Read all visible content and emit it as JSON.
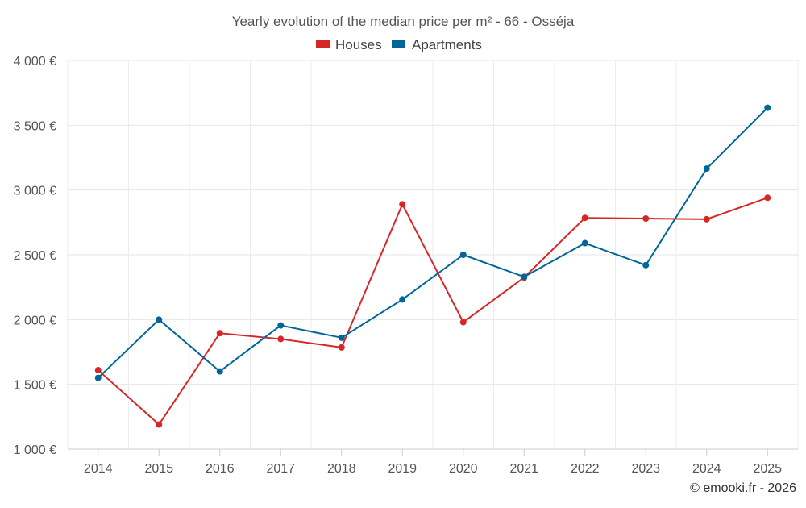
{
  "chart_data": {
    "type": "line",
    "title": "Yearly evolution of the median price per m² - 66 - Osséja",
    "categories": [
      "2014",
      "2015",
      "2016",
      "2017",
      "2018",
      "2019",
      "2020",
      "2021",
      "2022",
      "2023",
      "2024",
      "2025"
    ],
    "series": [
      {
        "name": "Houses",
        "color": "#d62728",
        "values": [
          1610,
          1190,
          1895,
          1850,
          1785,
          2890,
          1980,
          2325,
          2785,
          2780,
          2775,
          2940
        ]
      },
      {
        "name": "Apartments",
        "color": "#006699",
        "values": [
          1550,
          2000,
          1600,
          1955,
          1860,
          2155,
          2500,
          2330,
          2590,
          2420,
          3165,
          3635
        ]
      }
    ],
    "ylim": [
      1000,
      4000
    ],
    "yticks": [
      1000,
      1500,
      2000,
      2500,
      3000,
      3500,
      4000
    ],
    "ytick_labels": [
      "1 000 €",
      "1 500 €",
      "2 000 €",
      "2 500 €",
      "3 000 €",
      "3 500 €",
      "4 000 €"
    ],
    "xlabel": "",
    "ylabel": "",
    "legend_position": "top-center",
    "grid": true
  },
  "credit": "© emooki.fr - 2026"
}
